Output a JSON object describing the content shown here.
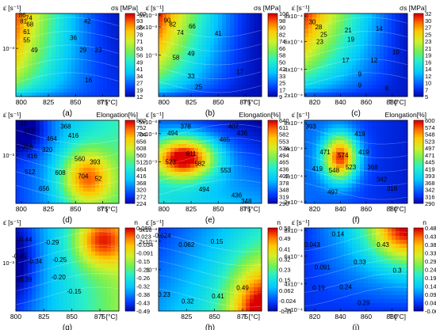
{
  "chart_data": [
    {
      "type": "heatmap",
      "panel_label": "(a)",
      "quantity_label": "σs [MPa]",
      "xlabel": "T [°C]",
      "ylabel": "ε̇ [s⁻¹]",
      "xticks": [
        "800",
        "825",
        "850",
        "875"
      ],
      "yticks": [
        "10⁻³"
      ],
      "colorbar_ticks": [
        "100",
        "93",
        "85",
        "78",
        "71",
        "63",
        "56",
        "49",
        "41",
        "34",
        "27",
        "19",
        "12"
      ],
      "colorbar_ticks_extra": [
        "18",
        "10"
      ],
      "colorbar_range": [
        10,
        100
      ],
      "contour_labels": [
        {
          "text": "86",
          "x": 801,
          "y": 0.98
        },
        {
          "text": "74",
          "x": 807,
          "y": 0.95
        },
        {
          "text": "81",
          "x": 802,
          "y": 0.91
        },
        {
          "text": "68",
          "x": 808,
          "y": 0.87
        },
        {
          "text": "61",
          "x": 805,
          "y": 0.78
        },
        {
          "text": "55",
          "x": 805,
          "y": 0.68
        },
        {
          "text": "42",
          "x": 861,
          "y": 0.91
        },
        {
          "text": "36",
          "x": 848,
          "y": 0.71
        },
        {
          "text": "49",
          "x": 812,
          "y": 0.56
        },
        {
          "text": "29",
          "x": 857,
          "y": 0.56
        },
        {
          "text": "23",
          "x": 871,
          "y": 0.56
        },
        {
          "text": "16",
          "x": 862,
          "y": 0.2
        }
      ]
    },
    {
      "type": "heatmap",
      "panel_label": "(b)",
      "quantity_label": "σs [MPa]",
      "xlabel": "T [°C]",
      "ylabel": "ε̇ [s⁻¹]",
      "xticks": [
        "800",
        "825",
        "850",
        "875"
      ],
      "yticks": [
        "5x10⁻³",
        "2x10⁻³",
        "10⁻³"
      ],
      "colorbar_ticks": [
        "106",
        "98",
        "90",
        "82",
        "74",
        "66",
        "58",
        "50",
        "42",
        "33",
        "25",
        "17",
        "9"
      ],
      "colorbar_range": [
        9,
        106
      ],
      "contour_labels": [
        {
          "text": "90",
          "x": 803,
          "y": 0.92
        },
        {
          "text": "82",
          "x": 808,
          "y": 0.87
        },
        {
          "text": "74",
          "x": 815,
          "y": 0.77
        },
        {
          "text": "66",
          "x": 826,
          "y": 0.85
        },
        {
          "text": "41",
          "x": 850,
          "y": 0.76
        },
        {
          "text": "58",
          "x": 811,
          "y": 0.47
        },
        {
          "text": "49",
          "x": 825,
          "y": 0.52
        },
        {
          "text": "33",
          "x": 825,
          "y": 0.25
        },
        {
          "text": "25",
          "x": 832,
          "y": 0.12
        },
        {
          "text": "17",
          "x": 870,
          "y": 0.3
        }
      ]
    },
    {
      "type": "heatmap",
      "panel_label": "(c)",
      "quantity_label": "σs [MPa]",
      "xlabel": "T [°C]",
      "ylabel": "ε̇ [s⁻¹]",
      "xticks": [
        "820",
        "840",
        "860",
        "880"
      ],
      "yticks": [
        "8x10⁻⁴",
        "6x10⁻⁴",
        "4x10⁻⁴",
        "2x10⁻⁴"
      ],
      "colorbar_ticks": [
        "32",
        "30",
        "27",
        "25",
        "23",
        "21",
        "19",
        "16",
        "14",
        "12",
        "10",
        "7",
        "5"
      ],
      "colorbar_range": [
        5,
        32
      ],
      "contour_labels": [
        {
          "text": "30",
          "x": 818,
          "y": 0.9
        },
        {
          "text": "28",
          "x": 823,
          "y": 0.84
        },
        {
          "text": "25",
          "x": 827,
          "y": 0.75
        },
        {
          "text": "21",
          "x": 846,
          "y": 0.8
        },
        {
          "text": "19",
          "x": 848,
          "y": 0.69
        },
        {
          "text": "14",
          "x": 870,
          "y": 0.82
        },
        {
          "text": "23",
          "x": 824,
          "y": 0.66
        },
        {
          "text": "17",
          "x": 844,
          "y": 0.44
        },
        {
          "text": "12",
          "x": 866,
          "y": 0.44
        },
        {
          "text": "10",
          "x": 883,
          "y": 0.54
        },
        {
          "text": "9",
          "x": 855,
          "y": 0.27
        },
        {
          "text": "9",
          "x": 855,
          "y": 0.14
        },
        {
          "text": "8",
          "x": 876,
          "y": 0.1
        }
      ]
    },
    {
      "type": "heatmap",
      "panel_label": "(d)",
      "quantity_label": "Elongation[%]",
      "xlabel": "T [°C]",
      "ylabel": "ε̇ [s⁻¹]",
      "xticks": [
        "800",
        "825",
        "850",
        "875"
      ],
      "yticks": [
        "10⁻³"
      ],
      "colorbar_ticks": [
        "800",
        "752",
        "704",
        "656",
        "608",
        "560",
        "512",
        "464",
        "416",
        "368",
        "320",
        "272",
        "224"
      ],
      "colorbar_range": [
        224,
        800
      ],
      "contour_labels": [
        {
          "text": "31",
          "x": 802,
          "y": 0.96
        },
        {
          "text": "272",
          "x": 807,
          "y": 0.87
        },
        {
          "text": "368",
          "x": 841,
          "y": 0.93
        },
        {
          "text": "464",
          "x": 828,
          "y": 0.78
        },
        {
          "text": "416",
          "x": 848,
          "y": 0.82
        },
        {
          "text": "368",
          "x": 806,
          "y": 0.68
        },
        {
          "text": "320",
          "x": 824,
          "y": 0.65
        },
        {
          "text": "416",
          "x": 810,
          "y": 0.57
        },
        {
          "text": "560",
          "x": 854,
          "y": 0.54
        },
        {
          "text": "512",
          "x": 808,
          "y": 0.38
        },
        {
          "text": "608",
          "x": 836,
          "y": 0.37
        },
        {
          "text": "393",
          "x": 868,
          "y": 0.5
        },
        {
          "text": "704",
          "x": 857,
          "y": 0.33
        },
        {
          "text": "52",
          "x": 871,
          "y": 0.3
        },
        {
          "text": "656",
          "x": 821,
          "y": 0.18
        }
      ]
    },
    {
      "type": "heatmap",
      "panel_label": "(e)",
      "quantity_label": "Elongation[%]",
      "xlabel": "T [°C]",
      "ylabel": "ε̇ [s⁻¹]",
      "xticks": [
        "800",
        "825",
        "850",
        "875"
      ],
      "yticks": [
        "5x10⁻³",
        "2x10⁻³",
        "10⁻³"
      ],
      "colorbar_ticks": [
        "640",
        "611",
        "582",
        "553",
        "524",
        "494",
        "465",
        "436",
        "407",
        "378",
        "348",
        "319",
        "290"
      ],
      "colorbar_range": [
        290,
        640
      ],
      "contour_labels": [
        {
          "text": "378",
          "x": 820,
          "y": 0.93
        },
        {
          "text": "407",
          "x": 864,
          "y": 0.93
        },
        {
          "text": "494",
          "x": 808,
          "y": 0.85
        },
        {
          "text": "465",
          "x": 856,
          "y": 0.77
        },
        {
          "text": "436",
          "x": 872,
          "y": 0.85
        },
        {
          "text": "611",
          "x": 825,
          "y": 0.6
        },
        {
          "text": "523",
          "x": 806,
          "y": 0.5
        },
        {
          "text": "582",
          "x": 833,
          "y": 0.48
        },
        {
          "text": "553",
          "x": 857,
          "y": 0.4
        },
        {
          "text": "494",
          "x": 837,
          "y": 0.17
        },
        {
          "text": "436",
          "x": 867,
          "y": 0.1
        },
        {
          "text": "348",
          "x": 876,
          "y": 0.03
        }
      ]
    },
    {
      "type": "heatmap",
      "panel_label": "(f)",
      "quantity_label": "Elongation[%]",
      "xlabel": "T [°C]",
      "ylabel": "ε̇ [s⁻¹]",
      "xticks": [
        "820",
        "840",
        "860",
        "880"
      ],
      "yticks": [
        "8x10⁻⁴",
        "6x10⁻⁴",
        "4x10⁻⁴",
        "2x10⁻⁴"
      ],
      "colorbar_ticks": [
        "600",
        "574",
        "548",
        "523",
        "497",
        "471",
        "445",
        "419",
        "393",
        "368",
        "342",
        "316",
        "290"
      ],
      "colorbar_range": [
        290,
        600
      ],
      "contour_labels": [
        {
          "text": "393",
          "x": 817,
          "y": 0.93
        },
        {
          "text": "419",
          "x": 855,
          "y": 0.84
        },
        {
          "text": "471",
          "x": 828,
          "y": 0.62
        },
        {
          "text": "419",
          "x": 858,
          "y": 0.62
        },
        {
          "text": "574",
          "x": 842,
          "y": 0.58
        },
        {
          "text": "419",
          "x": 822,
          "y": 0.42
        },
        {
          "text": "548",
          "x": 835,
          "y": 0.4
        },
        {
          "text": "523",
          "x": 848,
          "y": 0.44
        },
        {
          "text": "368",
          "x": 865,
          "y": 0.44
        },
        {
          "text": "342",
          "x": 872,
          "y": 0.29
        },
        {
          "text": "316",
          "x": 880,
          "y": 0.18
        },
        {
          "text": "497",
          "x": 834,
          "y": 0.14
        }
      ]
    },
    {
      "type": "heatmap",
      "panel_label": "(g)",
      "quantity_label": "n",
      "xlabel": "T [°C]",
      "ylabel": "ε̇ [s⁻¹]",
      "xticks": [
        "800",
        "825",
        "850",
        "875"
      ],
      "yticks": [
        "10⁻³"
      ],
      "colorbar_ticks": [
        "0.080",
        "0.023",
        "-0.034",
        "-0.091",
        "-0.15",
        "-0.21",
        "-0.26",
        "-0.32",
        "-0.38",
        "-0.43",
        "-0.49"
      ],
      "colorbar_range": [
        -0.49,
        0.08
      ],
      "contour_labels": [
        {
          "text": "-0.44",
          "x": 808,
          "y": 0.86
        },
        {
          "text": "-0.29",
          "x": 832,
          "y": 0.83
        },
        {
          "text": "-0.45",
          "x": 803,
          "y": 0.66
        },
        {
          "text": "-0.34",
          "x": 817,
          "y": 0.6
        },
        {
          "text": "-0.25",
          "x": 839,
          "y": 0.62
        },
        {
          "text": "-0.20",
          "x": 838,
          "y": 0.41
        },
        {
          "text": "-0.39",
          "x": 808,
          "y": 0.38
        },
        {
          "text": "-0.15",
          "x": 852,
          "y": 0.24
        }
      ]
    },
    {
      "type": "heatmap",
      "panel_label": "(h)",
      "quantity_label": "n",
      "xlabel": "T [°C]",
      "ylabel": "ε̇ [s⁻¹]",
      "xticks": [
        "825",
        "850",
        "875"
      ],
      "yticks": [
        "5x10⁻³",
        "2x10⁻³",
        "10⁻³"
      ],
      "colorbar_ticks": [
        "0.58",
        "0.49",
        "0.41",
        "0.32",
        "0.23",
        "0.15",
        "0.062",
        "-0.024",
        "-0.11"
      ],
      "colorbar_range": [
        -0.11,
        0.58
      ],
      "contour_labels": [
        {
          "text": "-0.024",
          "x": 803,
          "y": 0.91
        },
        {
          "text": "0.062",
          "x": 825,
          "y": 0.8
        },
        {
          "text": "0.15",
          "x": 852,
          "y": 0.84
        },
        {
          "text": "0.49",
          "x": 875,
          "y": 0.28
        },
        {
          "text": "0.23",
          "x": 805,
          "y": 0.2
        },
        {
          "text": "0.32",
          "x": 826,
          "y": 0.12
        },
        {
          "text": "0.41",
          "x": 853,
          "y": 0.18
        }
      ]
    },
    {
      "type": "heatmap",
      "panel_label": "(i)",
      "quantity_label": "n",
      "xlabel": "T [°C]",
      "ylabel": "ε̇ [s⁻¹]",
      "xticks": [
        "820",
        "840",
        "860",
        "880"
      ],
      "yticks": [
        "8x10⁻⁴",
        "6x10⁻⁴",
        "4x10⁻⁴",
        "2x10⁻⁴"
      ],
      "colorbar_ticks": [
        "0.48",
        "0.43",
        "0.38",
        "0.33",
        "0.29",
        "0.24",
        "0.19",
        "0.14",
        "0.091",
        "0.043",
        "-0.006"
      ],
      "colorbar_range": [
        -0.006,
        0.48
      ],
      "contour_labels": [
        {
          "text": "0.043",
          "x": 818,
          "y": 0.8
        },
        {
          "text": "0.14",
          "x": 838,
          "y": 0.93
        },
        {
          "text": "0.43",
          "x": 873,
          "y": 0.8
        },
        {
          "text": "0.091",
          "x": 826,
          "y": 0.53
        },
        {
          "text": "0.33",
          "x": 855,
          "y": 0.59
        },
        {
          "text": "0.3",
          "x": 884,
          "y": 0.49
        },
        {
          "text": "0.19",
          "x": 823,
          "y": 0.28
        },
        {
          "text": "0.24",
          "x": 844,
          "y": 0.29
        },
        {
          "text": "0.29",
          "x": 858,
          "y": 0.1
        }
      ]
    }
  ]
}
